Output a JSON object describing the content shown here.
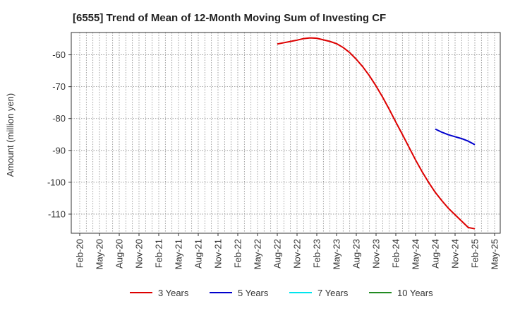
{
  "chart_data": {
    "type": "line",
    "title": "[6555]  Trend of Mean of 12-Month Moving Sum of Investing CF",
    "xlabel": "",
    "ylabel": "Amount (million yen)",
    "x_ticks": [
      "Feb-20",
      "May-20",
      "Aug-20",
      "Nov-20",
      "Feb-21",
      "May-21",
      "Aug-21",
      "Nov-21",
      "Feb-22",
      "May-22",
      "Aug-22",
      "Nov-22",
      "Feb-23",
      "May-23",
      "Aug-23",
      "Nov-23",
      "Feb-24",
      "May-24",
      "Aug-24",
      "Nov-24",
      "Feb-25",
      "May-25"
    ],
    "y_ticks": [
      -60,
      -70,
      -80,
      -90,
      -100,
      -110
    ],
    "ylim": [
      -116,
      -53
    ],
    "grid": true,
    "legend_position": "bottom",
    "colors": {
      "3 Years": "#dd0000",
      "5 Years": "#0000cc",
      "7 Years": "#00e5ee",
      "10 Years": "#228b22"
    },
    "series": [
      {
        "name": "3 Years",
        "x": [
          "Aug-22",
          "Sep-22",
          "Oct-22",
          "Nov-22",
          "Dec-22",
          "Jan-23",
          "Feb-23",
          "Mar-23",
          "Apr-23",
          "May-23",
          "Jun-23",
          "Jul-23",
          "Aug-23",
          "Sep-23",
          "Oct-23",
          "Nov-23",
          "Dec-23",
          "Jan-24",
          "Feb-24",
          "Mar-24",
          "Apr-24",
          "May-24",
          "Jun-24",
          "Jul-24",
          "Aug-24",
          "Sep-24",
          "Oct-24",
          "Nov-24",
          "Dec-24",
          "Jan-25",
          "Feb-25"
        ],
        "values": [
          -56.6,
          -56.2,
          -55.8,
          -55.4,
          -54.9,
          -54.7,
          -54.8,
          -55.3,
          -55.8,
          -56.5,
          -57.7,
          -59.3,
          -61.4,
          -63.8,
          -66.6,
          -69.8,
          -73.3,
          -77.1,
          -81.1,
          -85.0,
          -89.0,
          -93.0,
          -96.7,
          -100.1,
          -103.2,
          -105.8,
          -108.2,
          -110.2,
          -112.2,
          -114.2,
          -114.6
        ],
        "values_note": ""
      },
      {
        "name": "5 Years",
        "x": [
          "Aug-24",
          "Sep-24",
          "Oct-24",
          "Nov-24",
          "Dec-24",
          "Jan-25",
          "Feb-25"
        ],
        "values": [
          -83.3,
          -84.3,
          -85.1,
          -85.7,
          -86.3,
          -87.1,
          -88.2
        ]
      },
      {
        "name": "7 Years",
        "x": [],
        "values": []
      },
      {
        "name": "10 Years",
        "x": [],
        "values": []
      }
    ]
  }
}
